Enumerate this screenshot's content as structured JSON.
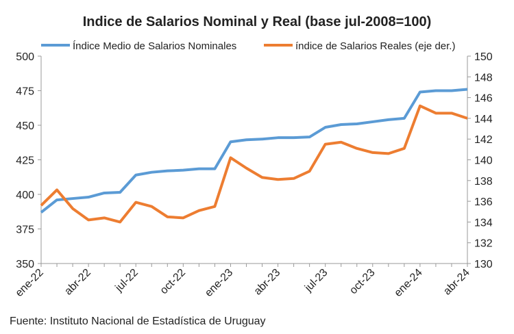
{
  "chart_data": {
    "type": "line",
    "title": "Indice de Salarios Nominal  y Real (base jul-2008=100)",
    "categories": [
      "ene-22",
      null,
      null,
      "abr-22",
      null,
      null,
      "jul-22",
      null,
      null,
      "oct-22",
      null,
      null,
      "ene-23",
      null,
      null,
      "abr-23",
      null,
      null,
      "jul-23",
      null,
      null,
      "oct-23",
      null,
      null,
      "ene-24",
      null,
      null,
      "abr-24"
    ],
    "series": [
      {
        "name": "Índice Medio de Salarios Nominales",
        "color": "#5b9bd5",
        "axis": "y",
        "values": [
          387,
          396,
          397,
          398,
          401,
          401.5,
          414,
          416,
          417,
          417.5,
          418.5,
          418.5,
          438,
          439.5,
          440,
          441,
          441,
          441.5,
          448.5,
          450.5,
          451,
          452.5,
          454,
          455,
          474,
          475,
          475,
          476
        ]
      },
      {
        "name": "índice de Salarios Reales (eje der.)",
        "color": "#ed7d31",
        "axis": "y2",
        "values": [
          135.6,
          137.1,
          135.3,
          134.2,
          134.4,
          134.0,
          135.9,
          135.5,
          134.5,
          134.4,
          135.1,
          135.5,
          140.2,
          139.2,
          138.3,
          138.1,
          138.2,
          138.9,
          141.5,
          141.7,
          141.1,
          140.7,
          140.6,
          141.1,
          145.2,
          144.5,
          144.5,
          144.0
        ]
      }
    ],
    "ylim": [
      350,
      500
    ],
    "yticks": [
      350,
      375,
      400,
      425,
      450,
      475,
      500
    ],
    "y2lim": [
      130,
      150
    ],
    "y2ticks": [
      130,
      132,
      134,
      136,
      138,
      140,
      142,
      144,
      146,
      148,
      150
    ],
    "source": "Fuente: Instituto Nacional de Estadística de Uruguay"
  }
}
